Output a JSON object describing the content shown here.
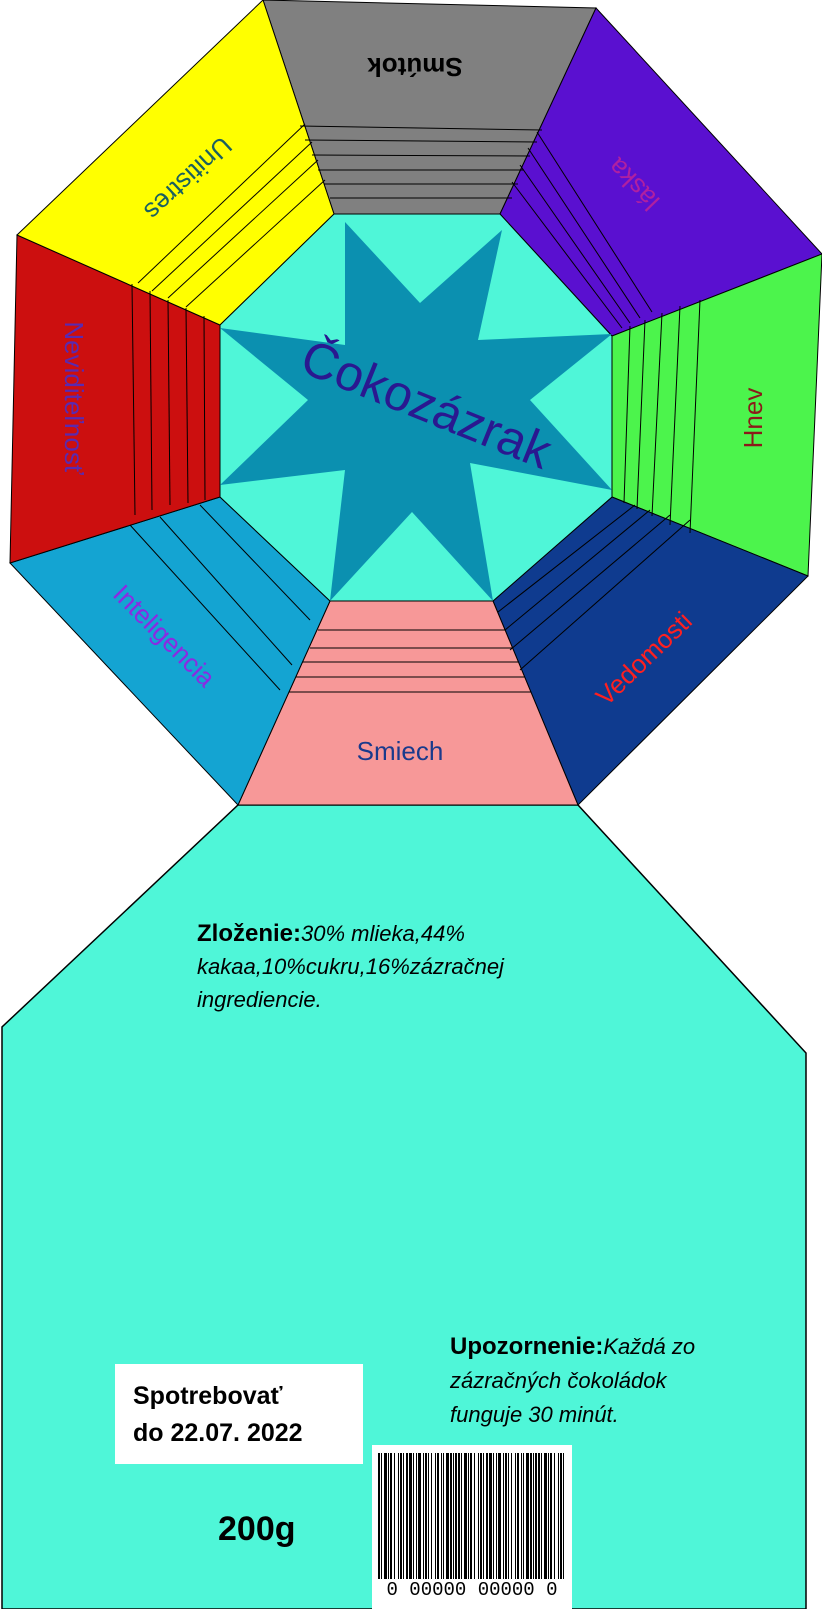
{
  "title": "Čokozázrak",
  "segments": {
    "top": {
      "label": "Smútok",
      "color": "#808080",
      "text_color": "#000000"
    },
    "top_right": {
      "label": "láska",
      "color": "#5a10d0",
      "text_color": "#b020a0"
    },
    "right": {
      "label": "Hnev",
      "color": "#4cf44c",
      "text_color": "#8b1a1a"
    },
    "bottom_right": {
      "label": "Vedomosti",
      "color": "#0f3b8f",
      "text_color": "#ff2020"
    },
    "bottom": {
      "label": "Smiech",
      "color": "#f79898",
      "text_color": "#1a3a8c"
    },
    "bottom_left": {
      "label": "Inteligencia",
      "color": "#14a4d2",
      "text_color": "#8a2be2"
    },
    "left": {
      "label": "Neviditeľnosť",
      "color": "#cc0f0f",
      "text_color": "#5a2ab0"
    },
    "top_left": {
      "label": "Unitistres",
      "color": "#ffff00",
      "text_color": "#1a6060"
    }
  },
  "colors": {
    "center": "#4ff6d8",
    "star": "#0b90b0",
    "title_text": "#2a1890",
    "bottom_panel": "#4ff6d8"
  },
  "composition": {
    "heading": "Zloženie:",
    "text": "30% mlieka,44% kakaa,10%cukru,16%zázračnej ingrediencie."
  },
  "warning": {
    "heading": "Upozornenie:",
    "text": "Každá zo zázračných čokoládok funguje 30 minút."
  },
  "expiry": {
    "line1": "Spotrebovať",
    "line2": "do 22.07. 2022"
  },
  "weight": "200g",
  "barcode": {
    "digits": "0  00000 00000  0"
  }
}
